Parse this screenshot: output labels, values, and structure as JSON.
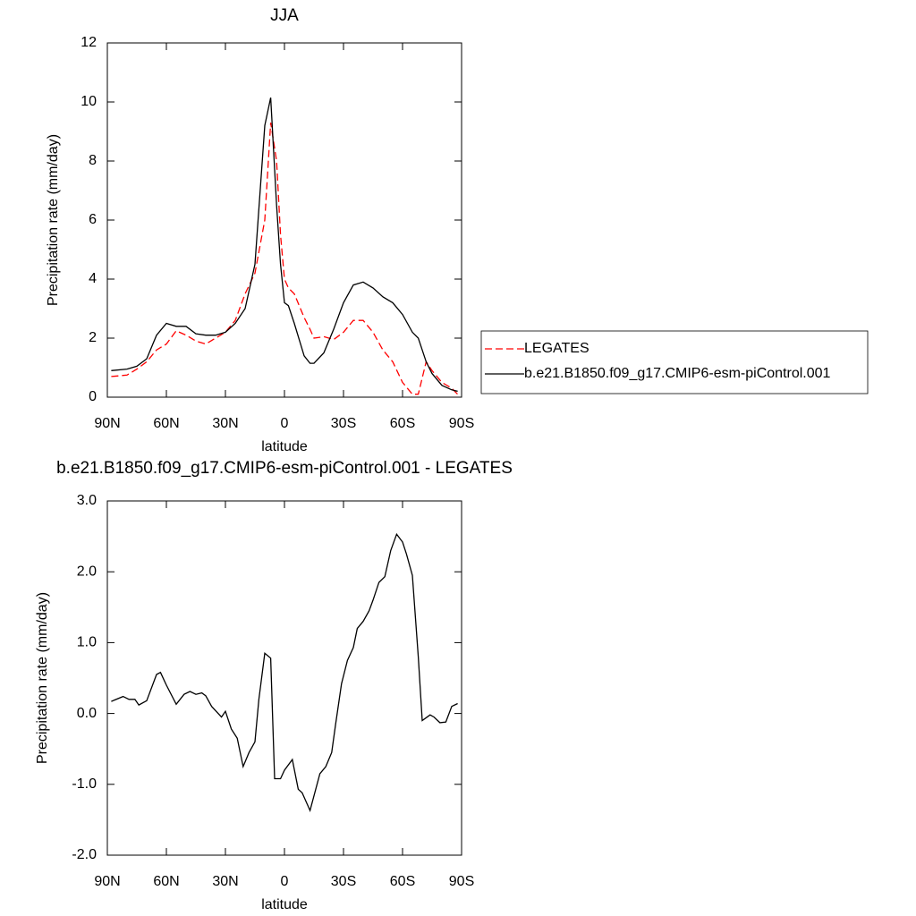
{
  "chart_data": [
    {
      "type": "line",
      "title": "JJA",
      "x_label": "latitude",
      "y_label": "Precipitation rate (mm/day)",
      "x": [
        88,
        80,
        75,
        70,
        65,
        60,
        55,
        50,
        45,
        40,
        35,
        30,
        25,
        20,
        15,
        10,
        7,
        4,
        2,
        0,
        -2,
        -5,
        -10,
        -13,
        -15,
        -20,
        -25,
        -30,
        -35,
        -40,
        -45,
        -50,
        -55,
        -60,
        -65,
        -68,
        -72,
        -75,
        -80,
        -85,
        -88
      ],
      "series": [
        {
          "name": "LEGATES",
          "color": "#ff0000",
          "style": "dashed",
          "values": [
            0.7,
            0.75,
            0.95,
            1.2,
            1.6,
            1.8,
            2.25,
            2.1,
            1.9,
            1.8,
            2.0,
            2.2,
            2.6,
            3.5,
            4.2,
            6.0,
            9.3,
            8.0,
            5.5,
            4.0,
            3.7,
            3.5,
            2.7,
            2.3,
            2.0,
            2.05,
            1.95,
            2.2,
            2.6,
            2.6,
            2.2,
            1.6,
            1.2,
            0.5,
            0.1,
            0.1,
            1.2,
            0.9,
            0.5,
            0.3,
            0.1
          ]
        },
        {
          "name": "b.e21.B1850.f09_g17.CMIP6-esm-piControl.001",
          "color": "#000000",
          "style": "solid",
          "values": [
            0.9,
            0.95,
            1.05,
            1.3,
            2.1,
            2.5,
            2.4,
            2.4,
            2.15,
            2.1,
            2.1,
            2.2,
            2.5,
            3.0,
            4.5,
            9.2,
            10.15,
            6.5,
            4.5,
            3.2,
            3.1,
            2.5,
            1.4,
            1.15,
            1.15,
            1.5,
            2.3,
            3.2,
            3.8,
            3.9,
            3.7,
            3.4,
            3.2,
            2.8,
            2.2,
            2.0,
            1.2,
            0.8,
            0.4,
            0.25,
            0.2
          ]
        }
      ],
      "xlim": [
        90,
        -90
      ],
      "ylim": [
        0,
        12
      ],
      "xticks": [
        {
          "value": 90,
          "label": "90N"
        },
        {
          "value": 60,
          "label": "60N"
        },
        {
          "value": 30,
          "label": "30N"
        },
        0,
        {
          "value": -30,
          "label": "30S"
        },
        {
          "value": -60,
          "label": "60S"
        },
        {
          "value": -90,
          "label": "90S"
        }
      ],
      "yticks": [
        0,
        2,
        4,
        6,
        8,
        10,
        12
      ],
      "legend": "right"
    },
    {
      "type": "line",
      "title": "b.e21.B1850.f09_g17.CMIP6-esm-piControl.001 - LEGATES",
      "x_label": "latitude",
      "y_label": "Precipitation rate (mm/day)",
      "x": [
        88,
        82,
        79,
        76,
        74,
        70,
        65,
        63,
        60,
        55,
        51,
        48,
        45,
        42,
        40,
        37,
        32,
        30,
        27,
        24,
        21,
        18,
        15,
        13,
        10,
        7,
        5,
        2,
        0,
        -4,
        -7,
        -9,
        -13,
        -18,
        -21,
        -24,
        -26,
        -29,
        -32,
        -35,
        -37,
        -40,
        -43,
        -45,
        -48,
        -51,
        -54,
        -57,
        -60,
        -62,
        -65,
        -68,
        -70,
        -74,
        -76,
        -79,
        -82,
        -85,
        -88
      ],
      "series": [
        {
          "color": "#000000",
          "style": "solid",
          "values": [
            0.17,
            0.24,
            0.2,
            0.2,
            0.12,
            0.18,
            0.55,
            0.58,
            0.4,
            0.13,
            0.27,
            0.31,
            0.27,
            0.29,
            0.25,
            0.1,
            -0.05,
            0.03,
            -0.22,
            -0.35,
            -0.75,
            -0.55,
            -0.4,
            0.2,
            0.85,
            0.78,
            -0.92,
            -0.92,
            -0.8,
            -0.65,
            -1.07,
            -1.12,
            -1.37,
            -0.85,
            -0.75,
            -0.55,
            -0.15,
            0.42,
            0.75,
            0.93,
            1.2,
            1.3,
            1.45,
            1.6,
            1.85,
            1.93,
            2.3,
            2.53,
            2.42,
            2.25,
            1.95,
            0.8,
            -0.1,
            -0.02,
            -0.05,
            -0.13,
            -0.12,
            0.1,
            0.14
          ]
        }
      ],
      "xlim": [
        90,
        -90
      ],
      "ylim": [
        -2,
        3
      ],
      "xticks": [
        {
          "value": 90,
          "label": "90N"
        },
        {
          "value": 60,
          "label": "60N"
        },
        {
          "value": 30,
          "label": "30N"
        },
        0,
        {
          "value": -30,
          "label": "30S"
        },
        {
          "value": -60,
          "label": "60S"
        },
        {
          "value": -90,
          "label": "90S"
        }
      ],
      "yticks": [
        {
          "value": -2,
          "label": "-2.0"
        },
        {
          "value": -1,
          "label": "-1.0"
        },
        {
          "value": 0,
          "label": "0.0"
        },
        {
          "value": 1,
          "label": "1.0"
        },
        {
          "value": 2,
          "label": "2.0"
        },
        {
          "value": 3,
          "label": "3.0"
        }
      ]
    }
  ]
}
